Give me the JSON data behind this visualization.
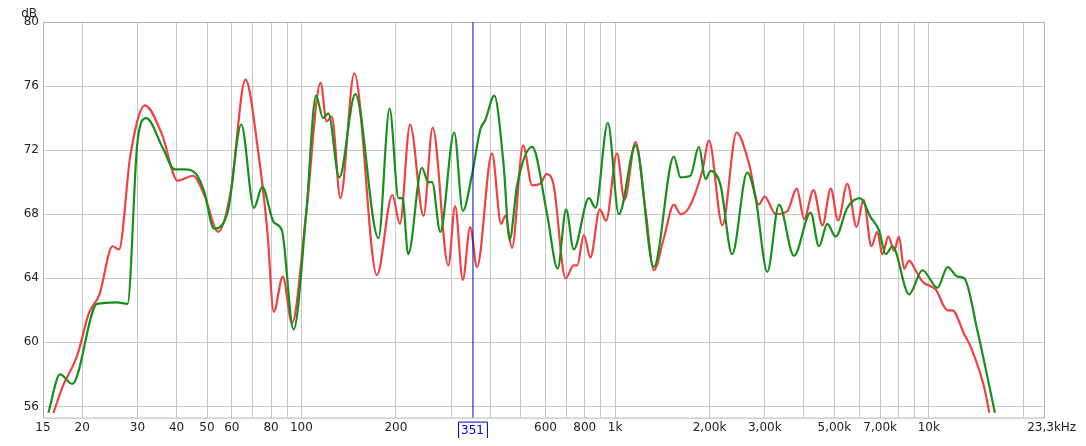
{
  "chart_data": {
    "type": "line",
    "ylabel": "dB",
    "log": "x",
    "grid": true,
    "xlim": [
      15,
      23300
    ],
    "ylim": [
      55.3,
      80
    ],
    "xticks": [
      15,
      20,
      30,
      40,
      50,
      60,
      {
        "value": 70,
        "label": null
      },
      80,
      {
        "value": 90,
        "label": null
      },
      100,
      200,
      {
        "value": 300,
        "label": null
      },
      {
        "value": 400,
        "label": null
      },
      {
        "value": 500,
        "label": null
      },
      600,
      {
        "value": 700,
        "label": null
      },
      800,
      {
        "value": 900,
        "label": null
      },
      {
        "value": 1000,
        "label": "1k"
      },
      {
        "value": 2000,
        "label": "2,00k"
      },
      {
        "value": 3000,
        "label": "3,00k"
      },
      {
        "value": 4000,
        "label": null
      },
      {
        "value": 5000,
        "label": "5,00k"
      },
      {
        "value": 6000,
        "label": null
      },
      {
        "value": 7000,
        "label": "7,00k"
      },
      {
        "value": 8000,
        "label": null
      },
      {
        "value": 9000,
        "label": null
      },
      {
        "value": 10000,
        "label": "10k"
      },
      {
        "value": 20000,
        "label": null
      },
      {
        "value": 23300,
        "label": "23,3k"
      }
    ],
    "xlabel": "Hz",
    "yticks": [
      56,
      60,
      64,
      68,
      72,
      76,
      80
    ],
    "ref_lines": [
      {
        "axis": "x",
        "value": 351,
        "label": "351",
        "color": "#0000cc"
      }
    ],
    "series": [
      {
        "color": "#16901a",
        "x": [
          15.6,
          17.0,
          18.6,
          22.3,
          25.8,
          27.9,
          30.0,
          32.0,
          36.2,
          39.4,
          42.4,
          46.2,
          49.0,
          52.6,
          58.3,
          64.3,
          70.6,
          75.0,
          81.6,
          86.6,
          94.4,
          103.5,
          111.3,
          117.2,
          121.9,
          132,
          148.5,
          176,
          191,
          204,
          210,
          219,
          242,
          254,
          261,
          277,
          307,
          327,
          350,
          372,
          386,
          412,
          441,
          461,
          487,
          544,
          607,
          656,
          698,
          738,
          825,
          866,
          948,
          1028,
          1162,
          1329,
          1539,
          1617,
          1738,
          1849,
          1942,
          2015,
          2169,
          2361,
          2637,
          2805,
          3057,
          3331,
          3716,
          4200,
          4465,
          4749,
          5048,
          5500,
          6038,
          6532,
          6939,
          7293,
          7657,
          8655,
          9540,
          10665,
          11476,
          12357,
          12976,
          14300,
          16250
        ],
        "values": [
          55.6,
          58.0,
          57.4,
          62.4,
          62.5,
          62.4,
          72.5,
          74.0,
          72.1,
          70.8,
          70.8,
          70.5,
          69.4,
          67.1,
          68.2,
          73.6,
          68.4,
          69.7,
          67.5,
          67.0,
          60.8,
          68.0,
          75.4,
          74.0,
          74.3,
          70.3,
          75.5,
          66.5,
          74.6,
          69.0,
          69.0,
          65.5,
          70.9,
          70.0,
          70.0,
          66.9,
          73.1,
          68.2,
          70.5,
          73.3,
          73.9,
          75.4,
          71.1,
          66.4,
          69.8,
          72.2,
          68.0,
          64.6,
          68.3,
          65.8,
          69.0,
          68.4,
          73.7,
          68.0,
          72.3,
          64.7,
          71.6,
          70.3,
          70.4,
          72.2,
          70.2,
          70.7,
          69.8,
          65.5,
          70.6,
          69.0,
          64.4,
          68.6,
          65.4,
          68.1,
          66.0,
          67.4,
          66.6,
          68.4,
          69.0,
          67.8,
          67.0,
          65.5,
          66.0,
          63.0,
          64.5,
          63.4,
          64.7,
          64.1,
          64.0,
          60.7,
          55.6
        ]
      },
      {
        "color": "#f04040",
        "x": [
          16.2,
          17.3,
          19.3,
          21.0,
          22.7,
          25.0,
          26.2,
          28.5,
          31.7,
          35.9,
          40.3,
          45.1,
          49.0,
          54.3,
          59.5,
          66.3,
          72.8,
          77.9,
          81.6,
          87.2,
          93.3,
          103.5,
          115.1,
          120.3,
          125,
          133.1,
          147.4,
          174,
          195,
          206,
          222,
          245,
          262,
          294,
          309,
          327,
          345,
          363,
          405,
          433,
          447,
          469,
          509,
          544,
          578,
          604,
          637,
          695,
          738,
          757,
          795,
          834,
          894,
          936,
          1014,
          1071,
          1162,
          1251,
          1329,
          1430,
          1539,
          1617,
          1719,
          1897,
          1992,
          2198,
          2438,
          2669,
          2871,
          2997,
          3251,
          3543,
          3795,
          4006,
          4290,
          4583,
          4869,
          5139,
          5500,
          5889,
          6193,
          6567,
          6855,
          7112,
          7434,
          7749,
          8037,
          8340,
          8655,
          9078,
          9540,
          10523,
          11476,
          11888,
          12976,
          13615,
          15020,
          15600
        ],
        "values": [
          55.6,
          57.2,
          59.2,
          61.8,
          63.0,
          66.0,
          65.8,
          71.7,
          74.8,
          73.0,
          70.1,
          70.4,
          69.2,
          66.9,
          69.4,
          76.4,
          71.9,
          66.9,
          61.9,
          64.1,
          61.2,
          68.0,
          76.2,
          73.8,
          74.1,
          69.0,
          76.8,
          64.2,
          69.2,
          67.4,
          73.6,
          67.9,
          73.4,
          64.8,
          68.5,
          63.9,
          67.2,
          64.7,
          71.8,
          67.4,
          67.9,
          65.9,
          72.3,
          69.8,
          69.9,
          70.5,
          69.8,
          64.0,
          64.8,
          64.8,
          66.7,
          65.3,
          68.3,
          67.6,
          71.8,
          68.9,
          72.5,
          68.2,
          64.5,
          66.5,
          68.6,
          68.0,
          68.4,
          70.7,
          72.6,
          67.3,
          73.1,
          71.2,
          68.6,
          69.1,
          68.0,
          68.2,
          69.6,
          67.7,
          69.5,
          67.3,
          69.6,
          67.6,
          69.9,
          67.2,
          68.9,
          66.0,
          66.9,
          65.5,
          66.6,
          65.7,
          66.6,
          64.6,
          65.1,
          64.5,
          63.8,
          63.3,
          62.0,
          62.0,
          60.5,
          59.7,
          57.2,
          55.6
        ]
      }
    ]
  }
}
